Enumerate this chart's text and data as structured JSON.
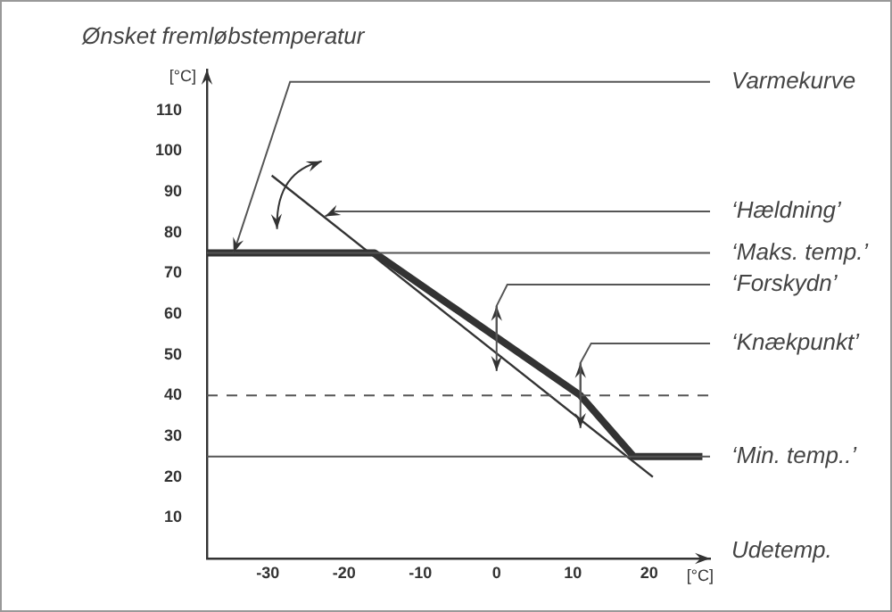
{
  "chart_data": {
    "type": "line",
    "ylabel": "Ønsket fremløbstemperatur",
    "xlabel": "Udetemp.",
    "series": [
      {
        "color": "#333333",
        "x": [
          -38,
          -16,
          11,
          18,
          27
        ],
        "values": [
          75,
          75,
          40,
          25,
          25
        ]
      },
      {
        "color": "#333333",
        "x": [
          -29.5,
          20.5
        ],
        "values": [
          94,
          20
        ]
      }
    ],
    "xlim": [
      -38,
      28
    ],
    "ylim": [
      0,
      120
    ],
    "xticks": [
      -30,
      -20,
      -10,
      0,
      10,
      20
    ],
    "yticks": [
      10,
      20,
      30,
      40,
      50,
      60,
      70,
      80,
      90,
      100,
      110
    ],
    "ref_lines": [
      {
        "axis": "y",
        "value": 75,
        "label": "‘Maks. temp.’"
      },
      {
        "axis": "y",
        "value": 40,
        "line_style": "dashed"
      },
      {
        "axis": "y",
        "value": 25,
        "label": "‘Min. temp..’"
      }
    ],
    "annotations": [
      {
        "text": "Varmekurve",
        "x": -34.5,
        "y": 75
      },
      {
        "text": "‘Hældning’",
        "x": -22.5,
        "y": 84
      },
      {
        "text": "‘Forskydn’",
        "x": 0,
        "y": 54
      },
      {
        "text": "‘Knækpunkt’",
        "x": 11,
        "y": 40
      },
      "[°C]",
      "[°C]"
    ],
    "grid": false,
    "legend": false,
    "marker": "none"
  }
}
